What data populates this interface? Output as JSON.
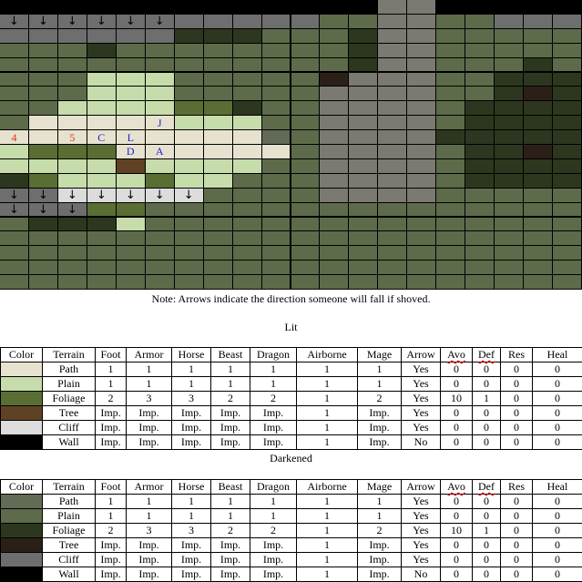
{
  "map": {
    "cols": 20,
    "rows": 20,
    "palette": {
      "dp": "#636b56",
      "dg": "#5d6b4a",
      "df": "#2d371f",
      "dt": "#2a2018",
      "dc": "#7a7a72",
      "w": "#000000",
      "lp": "#e6e2cf",
      "lg": "#c6dcaa",
      "lf": "#5a6e34",
      "lt": "#5f4224",
      "lc": "#dcdcdc",
      "gr": "#6e6e6e"
    },
    "grid": [
      "w  w  w  w  w  w  w  w  w  w  w  w  w  dc dc w  w  w  w  w",
      "gr gr gr gr gr gr gr gr gr gr gr dg dg dc dc dg dg gr gr gr",
      "gr gr gr gr gr gr df df df dg dg dg df dc dc dg dg dg dg dg",
      "dg dg dg df dg dg dg dg dg dg dg dg df dc dc dg dg dg dg dg",
      "dg dg dg dg dg dg dg dg dg dg dg dg df dc dc dg dg dg df dg",
      "dg dg dg lg lg lg dg dg dg dg dg dt dc dc dc dg dg df df df",
      "dg dg dg lg lg lg dg dg dg dg dg dc dc dc dc dg dg df dt df",
      "dg dg lg lg lg lg lf lf df dg dg dc dc dc dc dg df df df df",
      "dg lp lp lp lp lp lg lg lg dg dg dc dc dc dc dg df df df df",
      "lp lp lp lp lp lp lp lp lp dp dg dc dc dc dc df df df df df",
      "lg lf lf lf lp lp lp lp lp lp dg dc dc dc dc dg df df dt df",
      "lg lg lg lg lt lg lg lg lg dg dg dc dc dc dc dg df df df df",
      "df lf lg lg lg lf lg lg dg dg dg dc dc dc dc dg df df df df",
      "gr gr lc lc lc lc lc dg dg dg dg dc dc dc dc dg dg dg dg dg",
      "gr gr gr lf lf dg dg dg dg dg dg dg dg dg dg dg dg dg dg dg",
      "dg df df df lg dg dg dg dg dg dg dg dg dg dg dg dg dg dg dg",
      "dg dg dg dg dg dg dg dg dg dg dg dg dg dg dg dg dg dg dg dg",
      "dg dg dg dg dg dg dg dg dg dg dg dg dg dg dg dg dg dg dg dg",
      "dg dg dg dg dg dg dg dg dg dg dg dg dg dg dg dg dg dg dg dg",
      "dg dg dg dg dg dg dg dg dg dg dg dg dg dg dg dg dg dg dg dg"
    ],
    "arrows": [
      [
        0,
        0
      ],
      [
        0,
        1
      ],
      [
        0,
        2
      ],
      [
        0,
        3
      ],
      [
        0,
        4
      ],
      [
        0,
        5
      ],
      [
        0,
        6
      ],
      [
        0,
        7
      ],
      [
        0,
        8
      ],
      [
        0,
        9
      ],
      [
        0,
        10
      ],
      [
        0,
        17
      ],
      [
        0,
        18
      ],
      [
        0,
        19
      ],
      [
        1,
        0
      ],
      [
        1,
        1
      ],
      [
        1,
        2
      ],
      [
        1,
        3
      ],
      [
        1,
        4
      ],
      [
        1,
        5
      ],
      [
        13,
        0
      ],
      [
        13,
        1
      ],
      [
        13,
        2
      ],
      [
        13,
        3
      ],
      [
        13,
        4
      ],
      [
        13,
        5
      ],
      [
        13,
        6
      ],
      [
        14,
        0
      ],
      [
        14,
        1
      ],
      [
        14,
        2
      ]
    ],
    "arrow_glyph": "↓",
    "labels": [
      {
        "row": 8,
        "col": 5,
        "text": "J",
        "color": "#1f1fd0"
      },
      {
        "row": 9,
        "col": 0,
        "text": "4",
        "color": "#e0301e"
      },
      {
        "row": 9,
        "col": 2,
        "text": "5",
        "color": "#e0301e"
      },
      {
        "row": 9,
        "col": 3,
        "text": "C",
        "color": "#1f1fd0"
      },
      {
        "row": 9,
        "col": 4,
        "text": "L",
        "color": "#1f1fd0"
      },
      {
        "row": 10,
        "col": 4,
        "text": "D",
        "color": "#1f1fd0"
      },
      {
        "row": 10,
        "col": 5,
        "text": "A",
        "color": "#1f1fd0"
      }
    ]
  },
  "note": "Note: Arrows indicate the direction someone will fall if shoved.",
  "lit": {
    "title": "Lit",
    "headers": [
      "Color",
      "Terrain",
      "Foot",
      "Armor",
      "Horse",
      "Beast",
      "Dragon",
      "Airborne",
      "Mage",
      "Arrow",
      "Avo",
      "Def",
      "Res",
      "Heal"
    ],
    "rows": [
      {
        "color": "#e6e2cf",
        "cells": [
          "Path",
          "1",
          "1",
          "1",
          "1",
          "1",
          "1",
          "1",
          "Yes",
          "0",
          "0",
          "0",
          "0"
        ]
      },
      {
        "color": "#c6dcaa",
        "cells": [
          "Plain",
          "1",
          "1",
          "1",
          "1",
          "1",
          "1",
          "1",
          "Yes",
          "0",
          "0",
          "0",
          "0"
        ]
      },
      {
        "color": "#5a6e34",
        "cells": [
          "Foliage",
          "2",
          "3",
          "3",
          "2",
          "2",
          "1",
          "2",
          "Yes",
          "10",
          "1",
          "0",
          "0"
        ]
      },
      {
        "color": "#5f4224",
        "cells": [
          "Tree",
          "Imp.",
          "Imp.",
          "Imp.",
          "Imp.",
          "Imp.",
          "1",
          "Imp.",
          "Yes",
          "0",
          "0",
          "0",
          "0"
        ]
      },
      {
        "color": "#dcdcdc",
        "cells": [
          "Cliff",
          "Imp.",
          "Imp.",
          "Imp.",
          "Imp.",
          "Imp.",
          "1",
          "Imp.",
          "Yes",
          "0",
          "0",
          "0",
          "0"
        ]
      },
      {
        "color": "#000000",
        "cells": [
          "Wall",
          "Imp.",
          "Imp.",
          "Imp.",
          "Imp.",
          "Imp.",
          "1",
          "Imp.",
          "No",
          "0",
          "0",
          "0",
          "0"
        ]
      }
    ]
  },
  "darkened": {
    "title": "Darkened",
    "headers": [
      "Color",
      "Terrain",
      "Foot",
      "Armor",
      "Horse",
      "Beast",
      "Dragon",
      "Airborne",
      "Mage",
      "Arrow",
      "Avo",
      "Def",
      "Res",
      "Heal"
    ],
    "rows": [
      {
        "color": "#636b56",
        "cells": [
          "Path",
          "1",
          "1",
          "1",
          "1",
          "1",
          "1",
          "1",
          "Yes",
          "0",
          "0",
          "0",
          "0"
        ]
      },
      {
        "color": "#5d6b4a",
        "cells": [
          "Plain",
          "1",
          "1",
          "1",
          "1",
          "1",
          "1",
          "1",
          "Yes",
          "0",
          "0",
          "0",
          "0"
        ]
      },
      {
        "color": "#2d371f",
        "cells": [
          "Foliage",
          "2",
          "3",
          "3",
          "2",
          "2",
          "1",
          "2",
          "Yes",
          "10",
          "1",
          "0",
          "0"
        ]
      },
      {
        "color": "#2a2018",
        "cells": [
          "Tree",
          "Imp.",
          "Imp.",
          "Imp.",
          "Imp.",
          "Imp.",
          "1",
          "Imp.",
          "Yes",
          "0",
          "0",
          "0",
          "0"
        ]
      },
      {
        "color": "#6e6e6e",
        "cells": [
          "Cliff",
          "Imp.",
          "Imp.",
          "Imp.",
          "Imp.",
          "Imp.",
          "1",
          "Imp.",
          "Yes",
          "0",
          "0",
          "0",
          "0"
        ]
      },
      {
        "color": "#000000",
        "cells": [
          "Wall",
          "Imp.",
          "Imp.",
          "Imp.",
          "Imp.",
          "Imp.",
          "1",
          "Imp.",
          "No",
          "0",
          "0",
          "0",
          "0"
        ]
      }
    ]
  }
}
